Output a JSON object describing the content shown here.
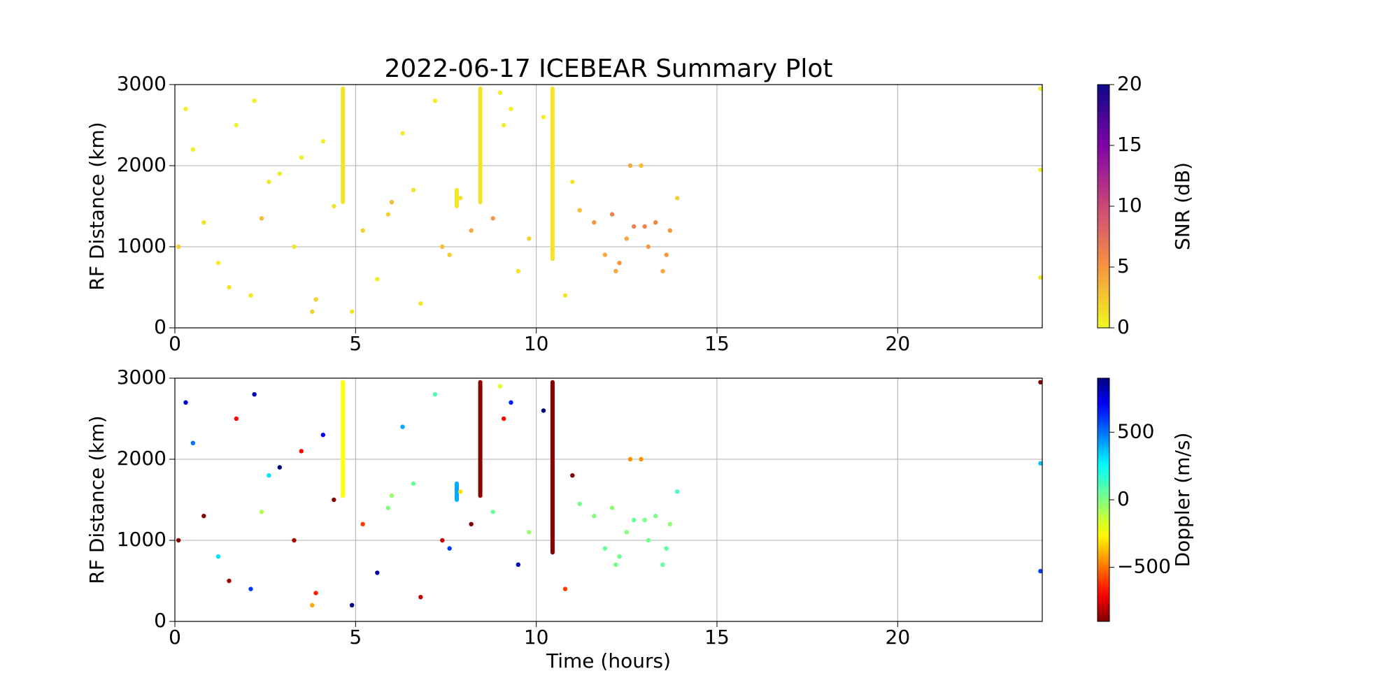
{
  "chart_data": [
    {
      "type": "scatter",
      "title": "2022-06-17 ICEBEAR Summary Plot",
      "ylabel": "RF Distance (km)",
      "xlim": [
        0,
        24
      ],
      "xticks": [
        0,
        5,
        10,
        15,
        20
      ],
      "ylim": [
        0,
        3000
      ],
      "yticks": [
        0,
        1000,
        2000,
        3000
      ],
      "grid": true,
      "colorbar": {
        "label": "SNR (dB)",
        "colormap": "plasma_r",
        "clim": [
          0,
          20
        ],
        "ticks": [
          0,
          5,
          10,
          15,
          20
        ]
      },
      "x": [
        0.3,
        0.8,
        1.2,
        1.7,
        2.1,
        2.4,
        2.9,
        3.3,
        3.8,
        4.1,
        4.4,
        5.2,
        5.6,
        6.0,
        6.3,
        6.8,
        7.2,
        7.6,
        7.9,
        8.2,
        8.8,
        9.1,
        9.5,
        9.8,
        10.2,
        10.8,
        11.2,
        11.6,
        11.9,
        12.1,
        12.3,
        12.5,
        12.7,
        12.9,
        13.1,
        13.3,
        13.5,
        13.7,
        13.9,
        0.5,
        1.5,
        2.6,
        3.5,
        4.9,
        5.9,
        6.6,
        7.4,
        9.3,
        11.0,
        12.2,
        13.0,
        13.6,
        12.6,
        3.9,
        0.1,
        23.95,
        23.95,
        23.95,
        2.2,
        9.0
      ],
      "y": [
        2700,
        1300,
        800,
        2500,
        400,
        1350,
        1900,
        1000,
        200,
        2300,
        1500,
        1200,
        600,
        1550,
        2400,
        300,
        2800,
        900,
        1600,
        1200,
        1350,
        2500,
        700,
        1100,
        2600,
        400,
        1450,
        1300,
        900,
        1400,
        800,
        1100,
        1250,
        2000,
        1000,
        1300,
        700,
        1200,
        1600,
        2200,
        500,
        1800,
        2100,
        200,
        1400,
        1700,
        1000,
        2700,
        1800,
        700,
        1250,
        900,
        2000,
        350,
        1000,
        620,
        2950,
        1950,
        2800,
        2900
      ],
      "c": [
        0.5,
        1,
        0.5,
        0.3,
        1,
        3,
        0.5,
        1,
        2,
        0.5,
        1,
        2,
        0.5,
        3,
        0.5,
        1,
        0.5,
        2,
        1,
        4,
        5,
        0.5,
        1,
        2,
        0.5,
        1,
        3,
        5,
        4,
        6,
        5,
        4,
        6,
        3,
        5,
        6,
        4,
        5,
        2,
        0.5,
        1,
        0.5,
        0.5,
        1,
        2,
        1,
        3,
        0.5,
        1,
        4,
        6,
        5,
        4,
        2,
        2,
        1,
        0.5,
        0.5,
        0.5,
        0.5
      ],
      "streaks": [
        {
          "x": 4.65,
          "y": [
            1550,
            2950
          ],
          "c": 1
        },
        {
          "x": 8.45,
          "y": [
            1550,
            2950
          ],
          "c": 1
        },
        {
          "x": 10.45,
          "y": [
            850,
            2950
          ],
          "c": 1
        },
        {
          "x": 7.8,
          "y": [
            1500,
            1700
          ],
          "c": 1
        }
      ]
    },
    {
      "type": "scatter",
      "ylabel": "RF Distance (km)",
      "xlabel": "Time (hours)",
      "xlim": [
        0,
        24
      ],
      "xticks": [
        0,
        5,
        10,
        15,
        20
      ],
      "ylim": [
        0,
        3000
      ],
      "yticks": [
        0,
        1000,
        2000,
        3000
      ],
      "grid": true,
      "colorbar": {
        "label": "Doppler (m/s)",
        "colormap": "jet_r",
        "clim": [
          -900,
          900
        ],
        "ticks": [
          {
            "value": -500,
            "label": "−500"
          },
          0,
          500
        ]
      },
      "x": [
        0.3,
        0.8,
        1.2,
        1.7,
        2.1,
        2.4,
        2.9,
        3.3,
        3.8,
        4.1,
        4.4,
        5.2,
        5.6,
        6.0,
        6.3,
        6.8,
        7.2,
        7.6,
        7.9,
        8.2,
        8.8,
        9.1,
        9.5,
        9.8,
        10.2,
        10.8,
        11.2,
        11.6,
        11.9,
        12.1,
        12.3,
        12.5,
        12.7,
        12.9,
        13.1,
        13.3,
        13.5,
        13.7,
        13.9,
        0.5,
        1.5,
        2.6,
        3.5,
        4.9,
        5.9,
        6.6,
        7.4,
        9.3,
        11.0,
        12.2,
        13.0,
        13.6,
        12.6,
        3.9,
        0.1,
        23.95,
        23.95,
        23.95,
        2.2,
        9.0
      ],
      "y": [
        2700,
        1300,
        800,
        2500,
        400,
        1350,
        1900,
        1000,
        200,
        2300,
        1500,
        1200,
        600,
        1550,
        2400,
        300,
        2800,
        900,
        1600,
        1200,
        1350,
        2500,
        700,
        1100,
        2600,
        400,
        1450,
        1300,
        900,
        1400,
        800,
        1100,
        1250,
        2000,
        1000,
        1300,
        700,
        1200,
        1600,
        2200,
        500,
        1800,
        2100,
        200,
        1400,
        1700,
        1000,
        2700,
        1800,
        700,
        1250,
        900,
        2000,
        350,
        1000,
        620,
        2950,
        1950,
        2800,
        2900
      ],
      "c": [
        800,
        -900,
        300,
        -700,
        600,
        -100,
        900,
        -850,
        -400,
        700,
        -900,
        -600,
        850,
        -50,
        400,
        -800,
        100,
        600,
        -300,
        -900,
        50,
        -700,
        800,
        -50,
        900,
        -600,
        20,
        0,
        50,
        -20,
        30,
        -10,
        40,
        -450,
        20,
        10,
        60,
        -30,
        100,
        500,
        -850,
        300,
        -700,
        900,
        0,
        50,
        -800,
        650,
        -900,
        30,
        0,
        80,
        -450,
        -650,
        -900,
        600,
        -900,
        350,
        800,
        -200
      ],
      "streaks": [
        {
          "x": 4.65,
          "y": [
            1550,
            2950
          ],
          "c": -250
        },
        {
          "x": 8.45,
          "y": [
            1550,
            2950
          ],
          "c": -880
        },
        {
          "x": 10.45,
          "y": [
            850,
            2950
          ],
          "c": -890
        },
        {
          "x": 7.8,
          "y": [
            1500,
            1700
          ],
          "c": 400
        }
      ]
    }
  ]
}
